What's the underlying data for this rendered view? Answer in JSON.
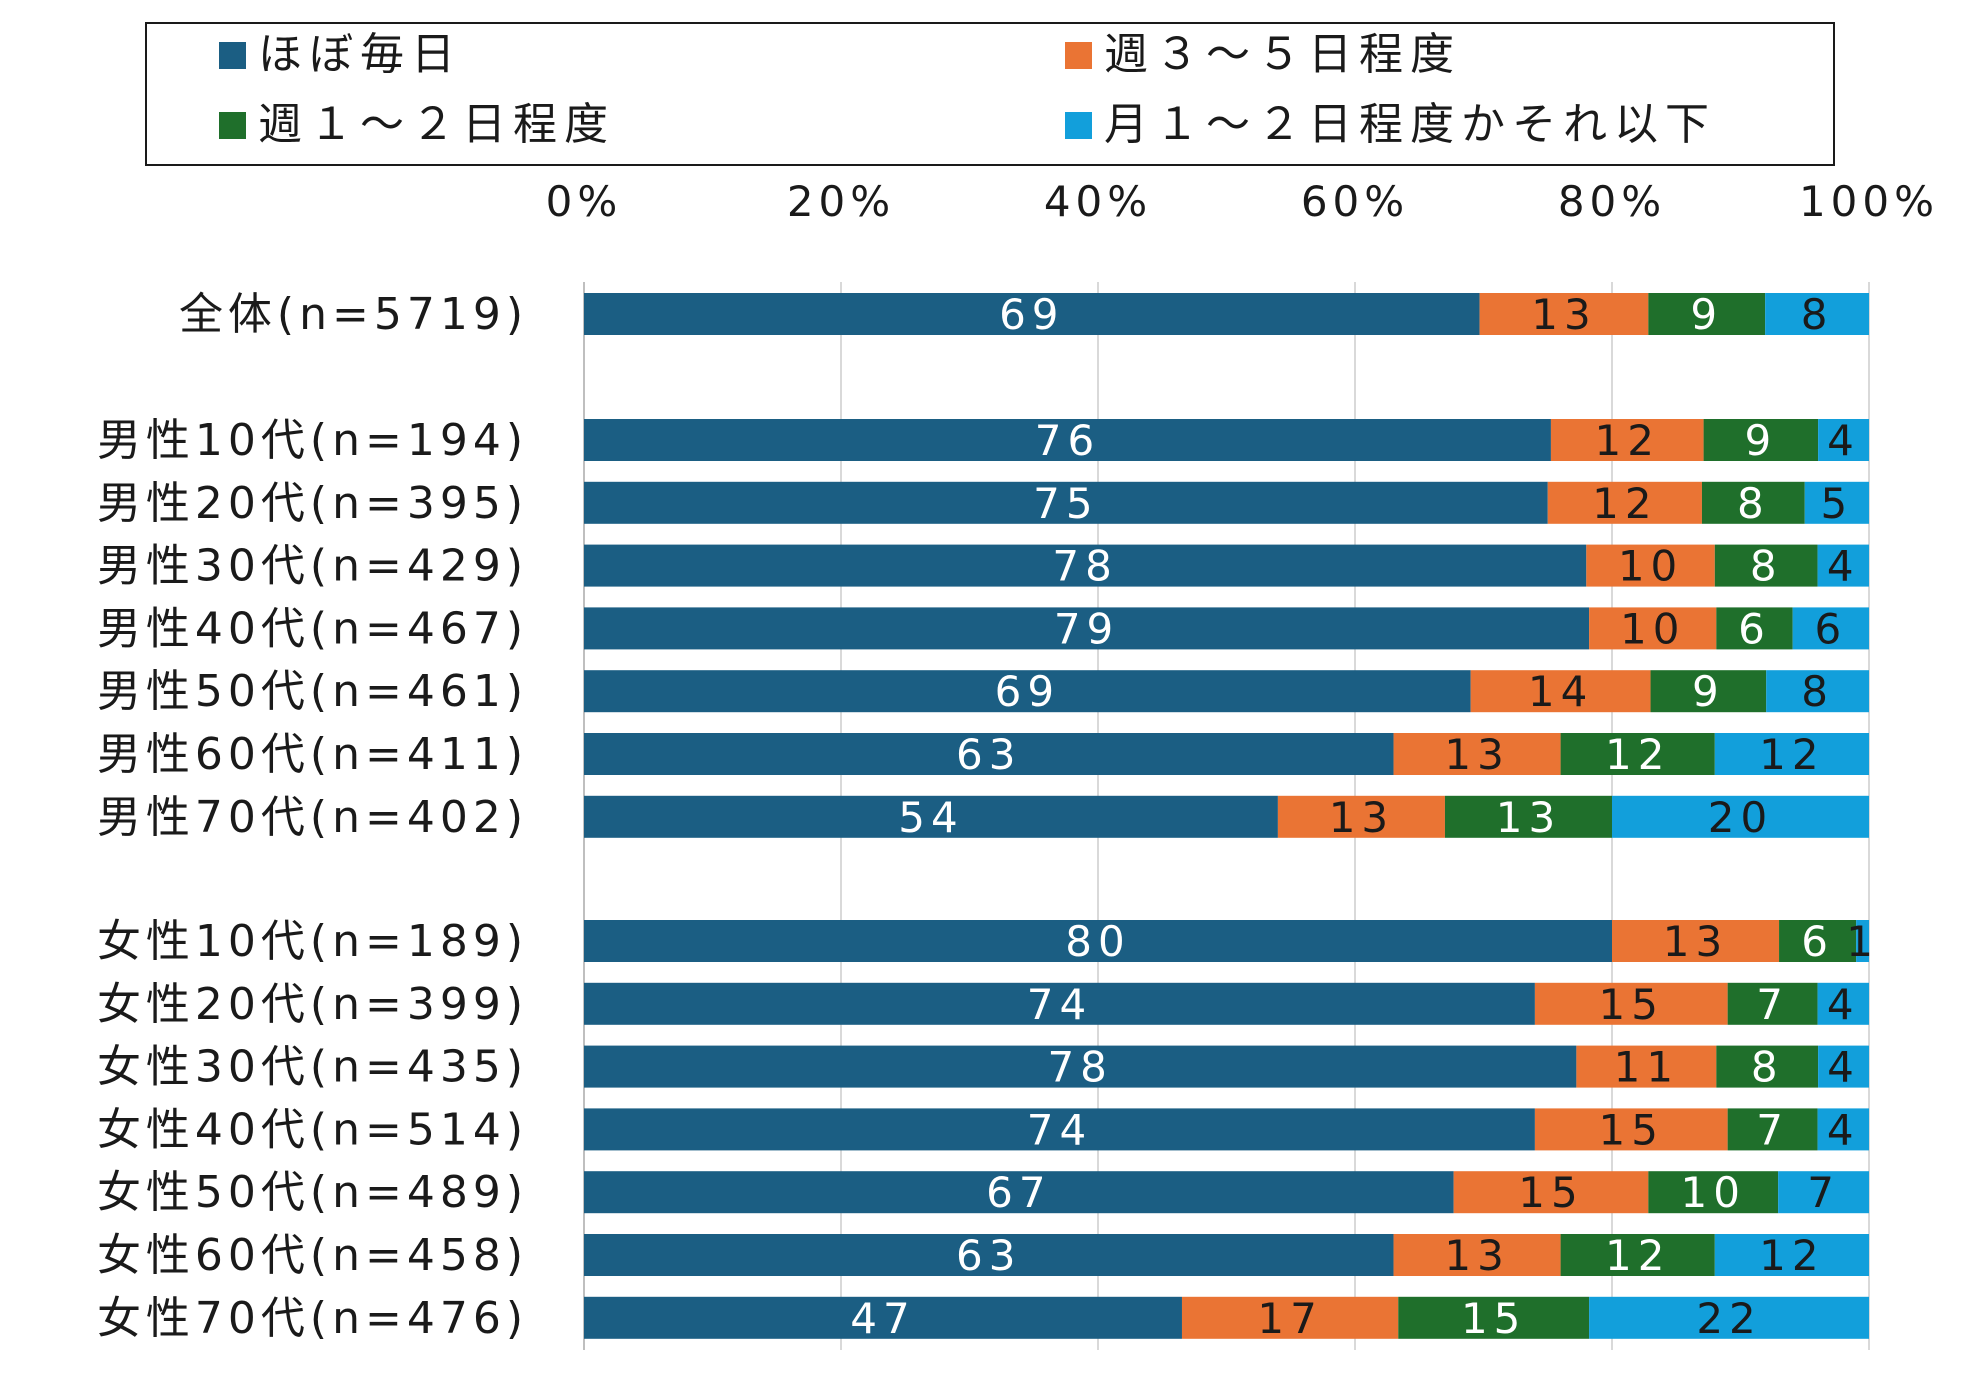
{
  "chart_data": {
    "type": "bar",
    "orientation": "horizontal",
    "stacked": "percent",
    "xlim": [
      0,
      100
    ],
    "x_ticks": [
      "0%",
      "20%",
      "40%",
      "60%",
      "80%",
      "100%"
    ],
    "x_tick_values": [
      0,
      20,
      40,
      60,
      80,
      100
    ],
    "x_axis_position": "top",
    "grid": true,
    "legend": "top",
    "categories": [
      "全体(n=5719)",
      "男性10代(n=194)",
      "男性20代(n=395)",
      "男性30代(n=429)",
      "男性40代(n=467)",
      "男性50代(n=461)",
      "男性60代(n=411)",
      "男性70代(n=402)",
      "女性10代(n=189)",
      "女性20代(n=399)",
      "女性30代(n=435)",
      "女性40代(n=514)",
      "女性50代(n=489)",
      "女性60代(n=458)",
      "女性70代(n=476)"
    ],
    "category_groups": [
      [
        0
      ],
      [
        1,
        2,
        3,
        4,
        5,
        6,
        7
      ],
      [
        8,
        9,
        10,
        11,
        12,
        13,
        14
      ]
    ],
    "series": [
      {
        "name": "ほぼ毎日",
        "color": "#1b5e83",
        "label_color": "#ffffff",
        "values": [
          69,
          76,
          75,
          78,
          79,
          69,
          63,
          54,
          80,
          74,
          78,
          74,
          67,
          63,
          47
        ]
      },
      {
        "name": "週３～５日程度",
        "color": "#ea7434",
        "label_color": "#1a1a1a",
        "values": [
          13,
          12,
          12,
          10,
          10,
          14,
          13,
          13,
          13,
          15,
          11,
          15,
          15,
          13,
          17
        ]
      },
      {
        "name": "週１～２日程度",
        "color": "#1f6f2b",
        "label_color": "#ffffff",
        "values": [
          9,
          9,
          8,
          8,
          6,
          9,
          12,
          13,
          6,
          7,
          8,
          7,
          10,
          12,
          15
        ]
      },
      {
        "name": "月１～２日程度かそれ以下",
        "color": "#129fdb",
        "label_color": "#1a1a1a",
        "values": [
          8,
          4,
          5,
          4,
          6,
          8,
          12,
          20,
          1,
          4,
          4,
          4,
          7,
          12,
          22
        ]
      }
    ]
  }
}
